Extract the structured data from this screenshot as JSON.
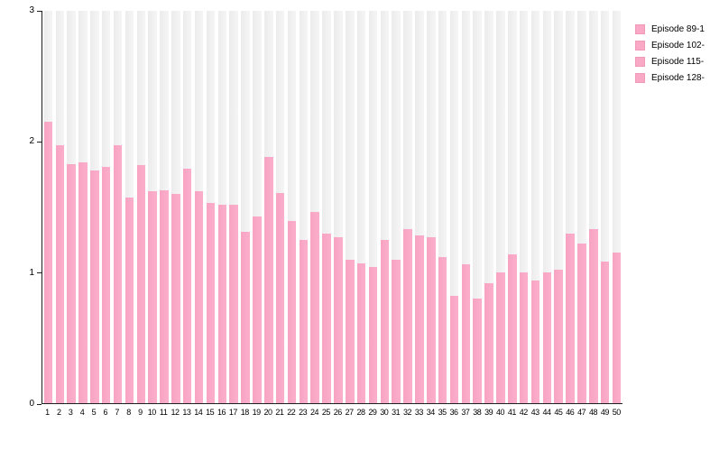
{
  "chart": {
    "colors": {
      "bar_pink": "#f9a8c5",
      "track_gray": "#f0f0f0",
      "axis_black": "#1f1f1f",
      "background": "#ffffff"
    },
    "y_axis": {
      "tick_labels": [
        "0",
        "1",
        "2",
        "3"
      ]
    },
    "legend": {
      "items": [
        {
          "label": "Episode 89-1",
          "color": "#f9a8c5"
        },
        {
          "label": "Episode 102-",
          "color": "#f9a8c5"
        },
        {
          "label": "Episode 115-",
          "color": "#f9a8c5"
        },
        {
          "label": "Episode 128-",
          "color": "#f9a8c5"
        }
      ]
    }
  },
  "chart_data": {
    "type": "bar",
    "title": "",
    "xlabel": "",
    "ylabel": "",
    "ylim": [
      0,
      3
    ],
    "yticks": [
      0,
      1,
      2,
      3
    ],
    "grid": false,
    "background_tracks": true,
    "legend_position": "top-right-outside",
    "legend_entries": [
      "Episode 89-1",
      "Episode 102-",
      "Episode 115-",
      "Episode 128-"
    ],
    "categories": [
      "1",
      "2",
      "3",
      "4",
      "5",
      "6",
      "7",
      "8",
      "9",
      "10",
      "11",
      "12",
      "13",
      "14",
      "15",
      "16",
      "17",
      "18",
      "19",
      "20",
      "21",
      "22",
      "23",
      "24",
      "25",
      "26",
      "27",
      "28",
      "29",
      "30",
      "31",
      "32",
      "33",
      "34",
      "35",
      "36",
      "37",
      "38",
      "39",
      "40",
      "41",
      "42",
      "43",
      "44",
      "45",
      "46",
      "47",
      "48",
      "49",
      "50"
    ],
    "values": [
      2.15,
      1.97,
      1.83,
      1.84,
      1.78,
      1.81,
      1.97,
      1.57,
      1.82,
      1.62,
      1.63,
      1.6,
      1.79,
      1.62,
      1.53,
      1.52,
      1.52,
      1.31,
      1.43,
      1.88,
      1.61,
      1.39,
      1.25,
      1.46,
      1.3,
      1.27,
      1.1,
      1.07,
      1.04,
      1.25,
      1.1,
      1.33,
      1.28,
      1.27,
      1.12,
      0.82,
      1.06,
      0.8,
      0.92,
      1.0,
      1.14,
      1.0,
      0.94,
      1.0,
      1.02,
      1.3,
      1.22,
      1.33,
      1.08,
      1.15
    ]
  }
}
